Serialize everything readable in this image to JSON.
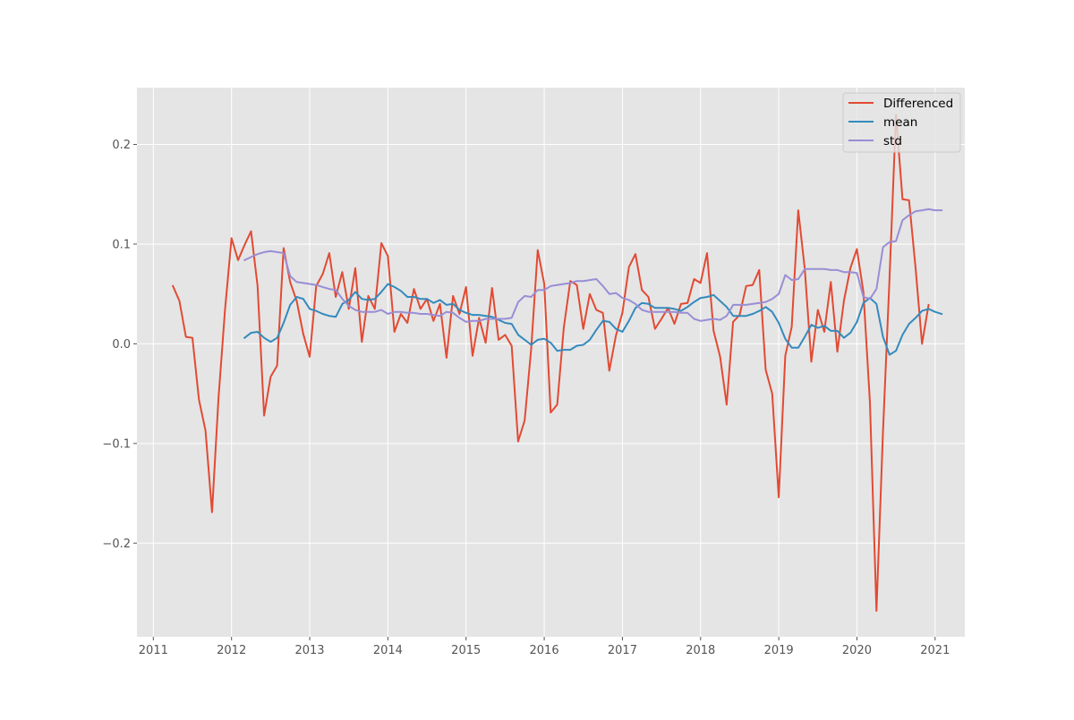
{
  "chart_data": {
    "type": "line",
    "title": "",
    "xlabel": "",
    "ylabel": "",
    "xlim": [
      2010.79,
      2021.38
    ],
    "ylim": [
      -0.294,
      0.257
    ],
    "x_ticks": [
      {
        "value": 2011,
        "label": "2011"
      },
      {
        "value": 2012,
        "label": "2012"
      },
      {
        "value": 2013,
        "label": "2013"
      },
      {
        "value": 2014,
        "label": "2014"
      },
      {
        "value": 2015,
        "label": "2015"
      },
      {
        "value": 2016,
        "label": "2016"
      },
      {
        "value": 2017,
        "label": "2017"
      },
      {
        "value": 2018,
        "label": "2018"
      },
      {
        "value": 2019,
        "label": "2019"
      },
      {
        "value": 2020,
        "label": "2020"
      },
      {
        "value": 2021,
        "label": "2021"
      }
    ],
    "y_ticks": [
      {
        "value": 0.2,
        "label": "0.2"
      },
      {
        "value": 0.1,
        "label": "0.1"
      },
      {
        "value": 0.0,
        "label": "0.0"
      },
      {
        "value": -0.1,
        "label": "−0.1"
      },
      {
        "value": -0.2,
        "label": "−0.2"
      }
    ],
    "grid": true,
    "legend_position": "top-right",
    "background_color": "#E5E5E5",
    "series": [
      {
        "name": "Differenced",
        "color": "#E24A33",
        "x_start": 2011.25,
        "x_step": 0.08333,
        "values": [
          0.058,
          0.043,
          0.007,
          0.006,
          -0.056,
          -0.087,
          -0.169,
          -0.055,
          0.034,
          0.106,
          0.084,
          0.099,
          0.113,
          0.058,
          -0.072,
          -0.033,
          -0.022,
          0.096,
          0.062,
          0.043,
          0.01,
          -0.013,
          0.058,
          0.07,
          0.091,
          0.047,
          0.072,
          0.035,
          0.076,
          0.002,
          0.048,
          0.035,
          0.101,
          0.088,
          0.012,
          0.03,
          0.021,
          0.055,
          0.035,
          0.045,
          0.023,
          0.04,
          -0.014,
          0.048,
          0.03,
          0.057,
          -0.012,
          0.026,
          0.001,
          0.056,
          0.004,
          0.009,
          -0.002,
          -0.098,
          -0.077,
          -0.005,
          0.094,
          0.06,
          -0.069,
          -0.061,
          0.016,
          0.063,
          0.059,
          0.015,
          0.05,
          0.034,
          0.031,
          -0.027,
          0.008,
          0.031,
          0.077,
          0.09,
          0.054,
          0.047,
          0.015,
          0.025,
          0.036,
          0.02,
          0.04,
          0.041,
          0.065,
          0.061,
          0.091,
          0.013,
          -0.013,
          -0.061,
          0.022,
          0.029,
          0.058,
          0.059,
          0.074,
          -0.026,
          -0.05,
          -0.154,
          -0.012,
          0.017,
          0.134,
          0.075,
          -0.018,
          0.034,
          0.012,
          0.062,
          -0.008,
          0.043,
          0.076,
          0.095,
          0.052,
          -0.059,
          -0.268,
          -0.09,
          0.064,
          0.23,
          0.145,
          0.144,
          0.077,
          0.0,
          0.039
        ]
      },
      {
        "name": "mean",
        "color": "#348ABD",
        "x_start": 2012.167,
        "x_step": 0.08333,
        "values": [
          0.006,
          0.011,
          0.012,
          0.006,
          0.002,
          0.006,
          0.021,
          0.039,
          0.047,
          0.045,
          0.035,
          0.033,
          0.03,
          0.028,
          0.027,
          0.04,
          0.044,
          0.052,
          0.045,
          0.044,
          0.045,
          0.052,
          0.06,
          0.057,
          0.053,
          0.047,
          0.047,
          0.045,
          0.045,
          0.041,
          0.044,
          0.039,
          0.04,
          0.034,
          0.031,
          0.029,
          0.029,
          0.028,
          0.027,
          0.024,
          0.021,
          0.02,
          0.009,
          0.004,
          -0.001,
          0.004,
          0.005,
          0.001,
          -0.007,
          -0.006,
          -0.006,
          -0.002,
          -0.001,
          0.004,
          0.014,
          0.023,
          0.022,
          0.015,
          0.012,
          0.023,
          0.036,
          0.041,
          0.04,
          0.036,
          0.036,
          0.036,
          0.035,
          0.033,
          0.037,
          0.042,
          0.046,
          0.047,
          0.049,
          0.043,
          0.037,
          0.028,
          0.028,
          0.028,
          0.03,
          0.033,
          0.037,
          0.032,
          0.021,
          0.005,
          -0.004,
          -0.004,
          0.007,
          0.019,
          0.016,
          0.018,
          0.013,
          0.013,
          0.006,
          0.011,
          0.022,
          0.041,
          0.046,
          0.04,
          0.007,
          -0.011,
          -0.007,
          0.009,
          0.02,
          0.026,
          0.033,
          0.035,
          0.032,
          0.03
        ]
      },
      {
        "name": "std",
        "color": "#988ED5",
        "x_start": 2012.167,
        "x_step": 0.08333,
        "values": [
          0.084,
          0.087,
          0.09,
          0.092,
          0.093,
          0.092,
          0.091,
          0.068,
          0.062,
          0.061,
          0.06,
          0.059,
          0.057,
          0.055,
          0.054,
          0.045,
          0.038,
          0.034,
          0.032,
          0.032,
          0.032,
          0.034,
          0.03,
          0.032,
          0.032,
          0.031,
          0.031,
          0.03,
          0.03,
          0.029,
          0.028,
          0.032,
          0.031,
          0.026,
          0.022,
          0.023,
          0.023,
          0.025,
          0.025,
          0.025,
          0.025,
          0.026,
          0.042,
          0.048,
          0.047,
          0.054,
          0.054,
          0.058,
          0.059,
          0.06,
          0.061,
          0.063,
          0.063,
          0.064,
          0.065,
          0.058,
          0.05,
          0.051,
          0.046,
          0.044,
          0.04,
          0.034,
          0.032,
          0.032,
          0.032,
          0.032,
          0.032,
          0.031,
          0.031,
          0.025,
          0.023,
          0.024,
          0.025,
          0.024,
          0.028,
          0.039,
          0.039,
          0.039,
          0.04,
          0.041,
          0.042,
          0.045,
          0.05,
          0.069,
          0.064,
          0.065,
          0.075,
          0.075,
          0.075,
          0.075,
          0.074,
          0.074,
          0.072,
          0.072,
          0.071,
          0.047,
          0.045,
          0.055,
          0.097,
          0.102,
          0.103,
          0.124,
          0.129,
          0.133,
          0.134,
          0.135,
          0.134,
          0.134
        ]
      }
    ]
  }
}
